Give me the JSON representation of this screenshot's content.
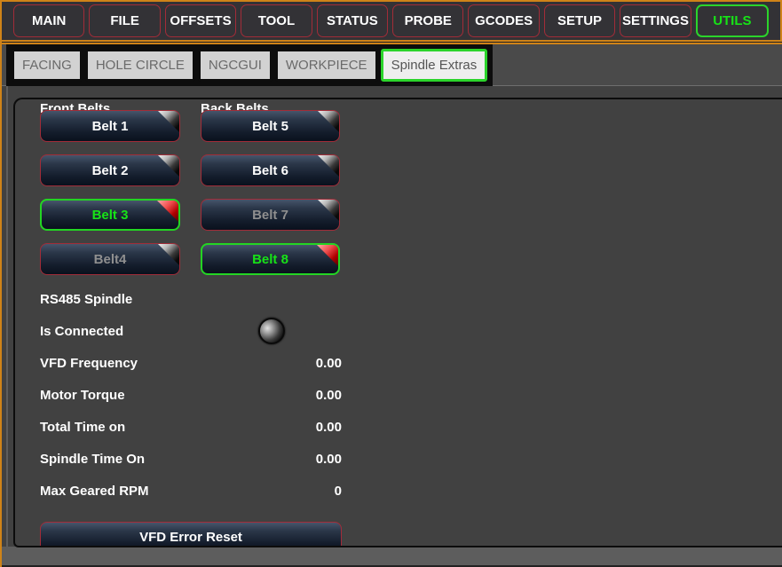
{
  "menubar": {
    "items": [
      {
        "label": "MAIN",
        "state": "normal"
      },
      {
        "label": "FILE",
        "state": "normal"
      },
      {
        "label": "OFFSETS",
        "state": "normal"
      },
      {
        "label": "TOOL",
        "state": "normal"
      },
      {
        "label": "STATUS",
        "state": "normal"
      },
      {
        "label": "PROBE",
        "state": "normal"
      },
      {
        "label": "GCODES",
        "state": "normal"
      },
      {
        "label": "SETUP",
        "state": "normal"
      },
      {
        "label": "SETTINGS",
        "state": "normal"
      },
      {
        "label": "UTILS",
        "state": "active"
      }
    ]
  },
  "tabs": {
    "items": [
      {
        "label": "FACING",
        "state": "normal"
      },
      {
        "label": "HOLE CIRCLE",
        "state": "normal"
      },
      {
        "label": "NGCGUI",
        "state": "normal"
      },
      {
        "label": "WORKPIECE",
        "state": "normal"
      },
      {
        "label": "Spindle Extras",
        "state": "selected"
      }
    ]
  },
  "panel": {
    "front_belts_title": "Front Belts",
    "back_belts_title": "Back Belts",
    "belts": [
      {
        "label": "Belt 1",
        "state": "normal"
      },
      {
        "label": "Belt 2",
        "state": "normal"
      },
      {
        "label": "Belt 3",
        "state": "active"
      },
      {
        "label": "Belt4",
        "state": "disabled"
      },
      {
        "label": "Belt 5",
        "state": "normal"
      },
      {
        "label": "Belt 6",
        "state": "normal"
      },
      {
        "label": "Belt 7",
        "state": "disabled"
      },
      {
        "label": "Belt 8",
        "state": "active"
      }
    ],
    "rs485": {
      "section_title": "RS485 Spindle",
      "connected_label": "Is Connected",
      "rows": [
        {
          "label": "VFD Frequency",
          "value": "0.00"
        },
        {
          "label": "Motor Torque",
          "value": "0.00"
        },
        {
          "label": "Total Time on",
          "value": "0.00"
        },
        {
          "label": "Spindle Time On",
          "value": "0.00"
        },
        {
          "label": "Max Geared RPM",
          "value": "0"
        }
      ]
    },
    "vfd_reset_label": "VFD Error Reset"
  },
  "colors": {
    "window_border_orange": "#cf8318",
    "button_border_red": "#a22c38",
    "active_green": "#23d523",
    "button_gradient_top": "#46556b",
    "button_gradient_bottom": "#0a111d",
    "panel_bg": "#414141"
  }
}
